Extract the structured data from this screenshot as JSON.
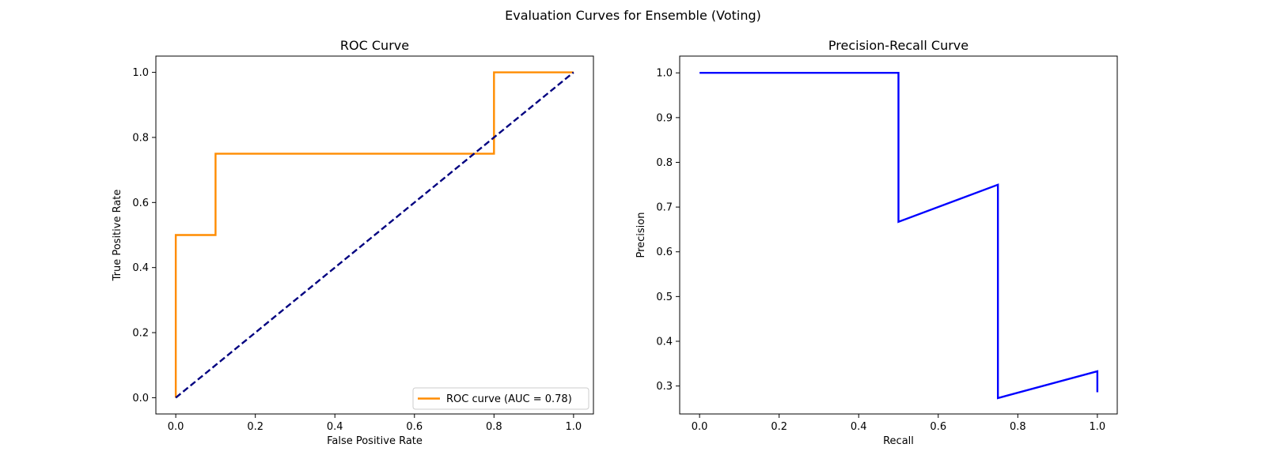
{
  "figure": {
    "suptitle": "Evaluation Curves for Ensemble (Voting)"
  },
  "chart_data": [
    {
      "type": "line",
      "title": "ROC Curve",
      "xlabel": "False Positive Rate",
      "ylabel": "True Positive Rate",
      "xlim": [
        -0.05,
        1.05
      ],
      "ylim": [
        -0.05,
        1.05
      ],
      "xticks": [
        0.0,
        0.2,
        0.4,
        0.6,
        0.8,
        1.0
      ],
      "yticks": [
        0.0,
        0.2,
        0.4,
        0.6,
        0.8,
        1.0
      ],
      "xtick_labels": [
        "0.0",
        "0.2",
        "0.4",
        "0.6",
        "0.8",
        "1.0"
      ],
      "ytick_labels": [
        "0.0",
        "0.2",
        "0.4",
        "0.6",
        "0.8",
        "1.0"
      ],
      "grid": false,
      "legend": {
        "placement": "lower-right"
      },
      "series": [
        {
          "name": "ROC curve (AUC = 0.78)",
          "color": "#ff8c00",
          "style": "solid",
          "in_legend": true,
          "x": [
            0.0,
            0.0,
            0.1,
            0.1,
            0.8,
            0.8,
            1.0
          ],
          "y": [
            0.0,
            0.5,
            0.5,
            0.75,
            0.75,
            1.0,
            1.0
          ]
        },
        {
          "color": "#000080",
          "style": "dashed",
          "in_legend": false,
          "x": [
            0.0,
            1.0
          ],
          "y": [
            0.0,
            1.0
          ]
        }
      ]
    },
    {
      "type": "line",
      "title": "Precision-Recall Curve",
      "xlabel": "Recall",
      "ylabel": "Precision",
      "xlim": [
        -0.05,
        1.05
      ],
      "ylim": [
        0.2375,
        1.0375
      ],
      "xticks": [
        0.0,
        0.2,
        0.4,
        0.6,
        0.8,
        1.0
      ],
      "yticks": [
        0.3,
        0.4,
        0.5,
        0.6,
        0.7,
        0.8,
        0.9,
        1.0
      ],
      "xtick_labels": [
        "0.0",
        "0.2",
        "0.4",
        "0.6",
        "0.8",
        "1.0"
      ],
      "ytick_labels": [
        "0.3",
        "0.4",
        "0.5",
        "0.6",
        "0.7",
        "0.8",
        "0.9",
        "1.0"
      ],
      "grid": false,
      "series": [
        {
          "color": "#0000ff",
          "style": "solid",
          "in_legend": false,
          "x": [
            0.0,
            0.5,
            0.5,
            0.75,
            0.75,
            1.0,
            1.0
          ],
          "y": [
            1.0,
            1.0,
            0.667,
            0.75,
            0.273,
            0.333,
            0.286
          ]
        }
      ]
    }
  ]
}
